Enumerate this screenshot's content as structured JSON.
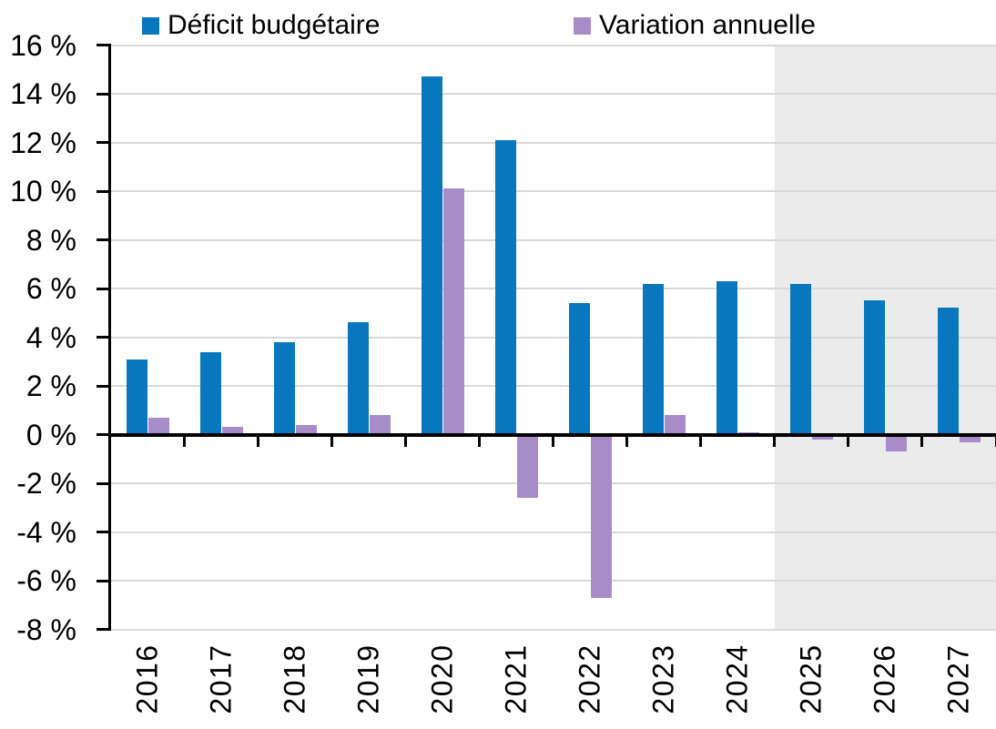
{
  "chart_data": {
    "type": "bar",
    "title": "",
    "categories": [
      "2016",
      "2017",
      "2018",
      "2019",
      "2020",
      "2021",
      "2022",
      "2023",
      "2024",
      "2025",
      "2026",
      "2027"
    ],
    "series": [
      {
        "name": "Déficit budgétaire",
        "color": "#0877BD",
        "values": [
          3.1,
          3.4,
          3.8,
          4.6,
          14.7,
          12.1,
          5.4,
          6.2,
          6.3,
          6.2,
          5.5,
          5.2
        ]
      },
      {
        "name": "Variation annuelle",
        "color": "#A88CC8",
        "values": [
          0.7,
          0.3,
          0.4,
          0.8,
          10.1,
          -2.6,
          -6.7,
          0.8,
          0.1,
          -0.2,
          -0.7,
          -0.3
        ]
      }
    ],
    "xlabel": "",
    "ylabel": "",
    "ylim": [
      -8,
      16
    ],
    "ytick_step": 2,
    "ytick_labels": [
      "16 %",
      "14 %",
      "12 %",
      "10 %",
      "8 %",
      "6 %",
      "4 %",
      "2 %",
      "0 %",
      "-2 %",
      "-4 %",
      "-6 %",
      "-8 %"
    ],
    "grid": true,
    "legend_position": "top",
    "forecast_shading": {
      "from_category": "2025",
      "to_category": "2027",
      "color": "#EBEBEB"
    },
    "gridline_color": "#D9D9D9",
    "axis_color": "#000000"
  }
}
